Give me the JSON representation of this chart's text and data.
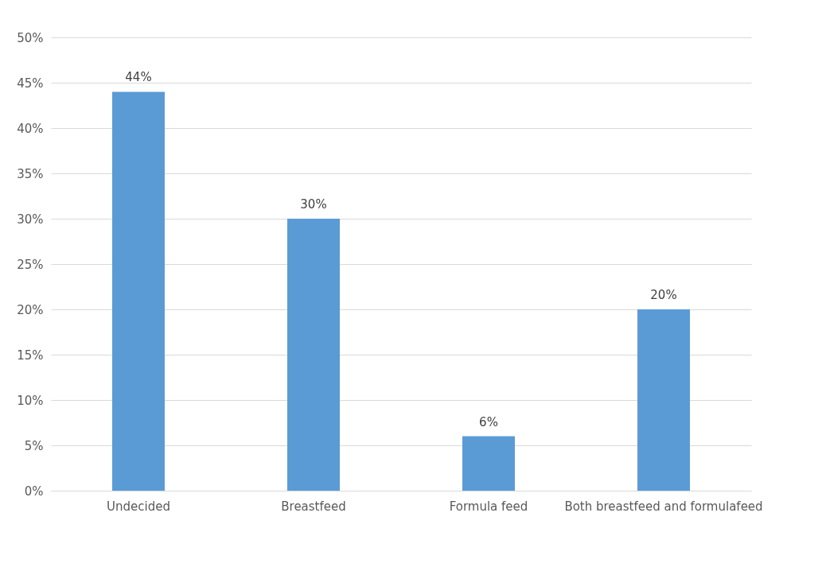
{
  "chart_data": {
    "type": "bar",
    "categories": [
      "Undecided",
      "Breastfeed",
      "Formula feed",
      "Both breastfeed and formulafeed"
    ],
    "values": [
      44,
      30,
      6,
      20
    ],
    "value_labels": [
      "44%",
      "30%",
      "6%",
      "20%"
    ],
    "color": "#5b9bd5",
    "ylim": [
      0,
      50
    ],
    "yticks": [
      {
        "value": 0,
        "label": "0%"
      },
      {
        "value": 5,
        "label": "5%"
      },
      {
        "value": 10,
        "label": "10%"
      },
      {
        "value": 15,
        "label": "15%"
      },
      {
        "value": 20,
        "label": "20%"
      },
      {
        "value": 25,
        "label": "25%"
      },
      {
        "value": 30,
        "label": "30%"
      },
      {
        "value": 35,
        "label": "35%"
      },
      {
        "value": 40,
        "label": "40%"
      },
      {
        "value": 45,
        "label": "45%"
      },
      {
        "value": 50,
        "label": "50%"
      }
    ],
    "grid": "y"
  }
}
